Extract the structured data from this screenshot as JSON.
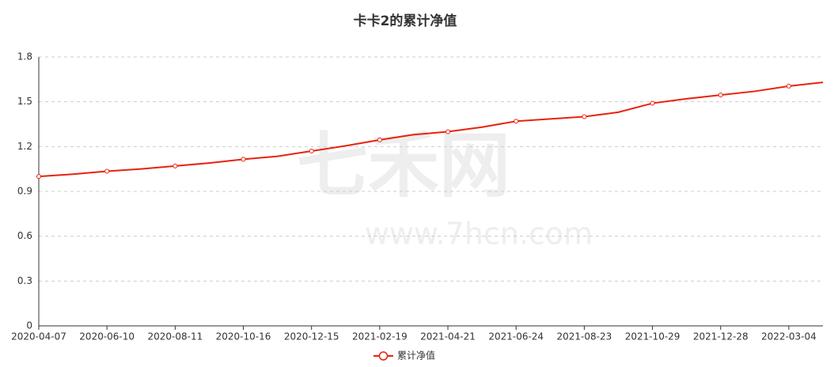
{
  "chart_data": {
    "type": "line",
    "title": "卡卡2的累计净值",
    "watermark": {
      "brand": "七禾网",
      "url": "www.7hcn.com"
    },
    "categories": [
      "2020-04-07",
      null,
      "2020-06-10",
      null,
      "2020-08-11",
      null,
      "2020-10-16",
      null,
      "2020-12-15",
      null,
      "2021-02-19",
      null,
      "2021-04-21",
      null,
      "2021-06-24",
      null,
      "2021-08-23",
      null,
      "2021-10-29",
      null,
      "2021-12-28",
      null,
      "2022-03-04",
      null
    ],
    "series": [
      {
        "name": "累计净值",
        "color": "#e8220f",
        "values": [
          1.0,
          1.015,
          1.035,
          1.05,
          1.07,
          1.09,
          1.115,
          1.135,
          1.17,
          1.205,
          1.245,
          1.28,
          1.3,
          1.33,
          1.37,
          1.385,
          1.4,
          1.43,
          1.49,
          1.52,
          1.545,
          1.57,
          1.605,
          1.63
        ]
      }
    ],
    "ylim": [
      0,
      1.8
    ],
    "yticks": [
      0,
      0.3,
      0.6,
      0.9,
      1.2,
      1.5,
      1.8
    ],
    "grid": true,
    "legend": "bottom"
  }
}
